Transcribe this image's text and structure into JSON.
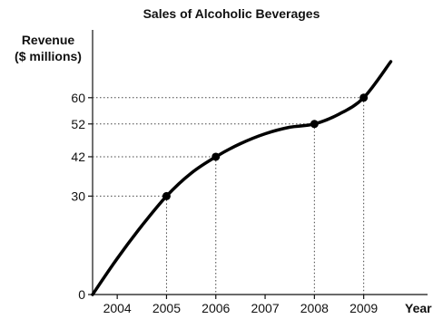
{
  "chart_data": {
    "type": "line",
    "title": "Sales of Alcoholic Beverages",
    "ylabel_lines": [
      "Revenue",
      "($ millions)"
    ],
    "xlabel": "Year",
    "x_ticks": [
      "2004",
      "2005",
      "2006",
      "2007",
      "2008",
      "2009"
    ],
    "y_ticks": [
      0,
      30,
      42,
      52,
      60
    ],
    "xlim": [
      2003.5,
      2009.8
    ],
    "ylim": [
      0,
      74
    ],
    "grid": false,
    "legend": "none",
    "series": [
      {
        "curve": [
          {
            "x": 2003.5,
            "y": 0
          },
          {
            "x": 2004,
            "y": 11
          },
          {
            "x": 2004.5,
            "y": 21
          },
          {
            "x": 2005,
            "y": 30
          },
          {
            "x": 2005.5,
            "y": 37
          },
          {
            "x": 2006,
            "y": 42
          },
          {
            "x": 2006.5,
            "y": 46
          },
          {
            "x": 2007,
            "y": 49
          },
          {
            "x": 2007.5,
            "y": 51
          },
          {
            "x": 2008,
            "y": 52
          },
          {
            "x": 2008.5,
            "y": 55
          },
          {
            "x": 2009,
            "y": 60
          },
          {
            "x": 2009.55,
            "y": 71
          }
        ],
        "marked_points": [
          {
            "x": 2005,
            "y": 30
          },
          {
            "x": 2006,
            "y": 42
          },
          {
            "x": 2008,
            "y": 52
          },
          {
            "x": 2009,
            "y": 60
          }
        ]
      }
    ]
  }
}
